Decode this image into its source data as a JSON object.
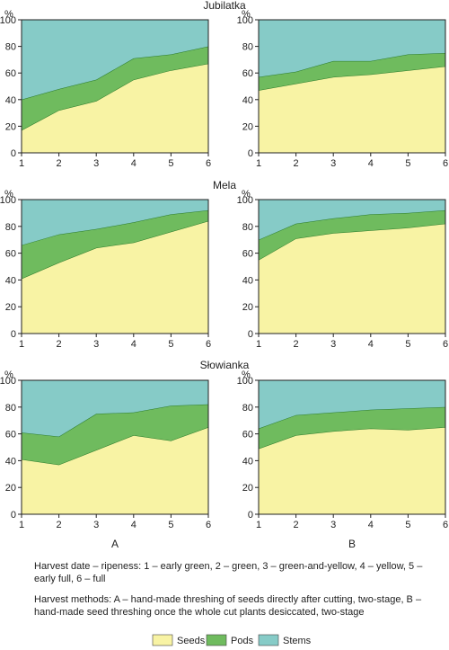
{
  "colors": {
    "seeds": "#f8f3a4",
    "pods": "#6fbb5e",
    "stems": "#86cbc7",
    "line": "#2a7a2a",
    "axis": "#222222"
  },
  "column_labels": [
    "A",
    "B"
  ],
  "captions": {
    "ripeness": "Harvest date – ripeness: 1 – early green, 2 – green, 3 – green-and-yellow, 4 – yellow, 5 – early full, 6 – full",
    "methods": "Harvest methods: A – hand-made threshing of seeds directly after cutting, two-stage, B – hand-made seed threshing once the whole cut plants desiccated, two-stage"
  },
  "legend": [
    {
      "label": "Seeds",
      "color": "#f8f3a4"
    },
    {
      "label": "Pods",
      "color": "#6fbb5e"
    },
    {
      "label": "Stems",
      "color": "#86cbc7"
    }
  ],
  "chart_data": [
    {
      "type": "area",
      "stacked": true,
      "group_title": "Jubilatka",
      "panel": "A",
      "ylabel": "%",
      "x": [
        1,
        2,
        3,
        4,
        5,
        6
      ],
      "ylim": [
        0,
        100
      ],
      "yticks": [
        0,
        20,
        40,
        60,
        80,
        100
      ],
      "series": [
        {
          "name": "Seeds",
          "values": [
            17,
            32,
            39,
            55,
            62,
            67
          ]
        },
        {
          "name": "Pods",
          "values": [
            23,
            16,
            16,
            16,
            12,
            13
          ]
        },
        {
          "name": "Stems",
          "values": [
            60,
            52,
            45,
            29,
            26,
            20
          ]
        }
      ]
    },
    {
      "type": "area",
      "stacked": true,
      "group_title": "",
      "panel": "B",
      "ylabel": "%",
      "x": [
        1,
        2,
        3,
        4,
        5,
        6
      ],
      "ylim": [
        0,
        100
      ],
      "yticks": [
        0,
        20,
        40,
        60,
        80,
        100
      ],
      "series": [
        {
          "name": "Seeds",
          "values": [
            47,
            52,
            57,
            59,
            62,
            65
          ]
        },
        {
          "name": "Pods",
          "values": [
            10,
            9,
            12,
            10,
            12,
            10
          ]
        },
        {
          "name": "Stems",
          "values": [
            43,
            39,
            31,
            31,
            26,
            25
          ]
        }
      ]
    },
    {
      "type": "area",
      "stacked": true,
      "group_title": "Mela",
      "panel": "A",
      "ylabel": "%",
      "x": [
        1,
        2,
        3,
        4,
        5,
        6
      ],
      "ylim": [
        0,
        100
      ],
      "yticks": [
        0,
        20,
        40,
        60,
        80,
        100
      ],
      "series": [
        {
          "name": "Seeds",
          "values": [
            41,
            53,
            64,
            68,
            76,
            84
          ]
        },
        {
          "name": "Pods",
          "values": [
            25,
            21,
            14,
            15,
            13,
            8
          ]
        },
        {
          "name": "Stems",
          "values": [
            34,
            26,
            22,
            17,
            11,
            8
          ]
        }
      ]
    },
    {
      "type": "area",
      "stacked": true,
      "group_title": "",
      "panel": "B",
      "ylabel": "%",
      "x": [
        1,
        2,
        3,
        4,
        5,
        6
      ],
      "ylim": [
        0,
        100
      ],
      "yticks": [
        0,
        20,
        40,
        60,
        80,
        100
      ],
      "series": [
        {
          "name": "Seeds",
          "values": [
            55,
            71,
            75,
            77,
            79,
            82
          ]
        },
        {
          "name": "Pods",
          "values": [
            15,
            11,
            11,
            12,
            11,
            10
          ]
        },
        {
          "name": "Stems",
          "values": [
            30,
            18,
            14,
            11,
            10,
            8
          ]
        }
      ]
    },
    {
      "type": "area",
      "stacked": true,
      "group_title": "Słowianka",
      "panel": "A",
      "ylabel": "%",
      "x": [
        1,
        2,
        3,
        4,
        5,
        6
      ],
      "ylim": [
        0,
        100
      ],
      "yticks": [
        0,
        20,
        40,
        60,
        80,
        100
      ],
      "series": [
        {
          "name": "Seeds",
          "values": [
            41,
            37,
            48,
            59,
            55,
            65
          ]
        },
        {
          "name": "Pods",
          "values": [
            20,
            21,
            27,
            17,
            26,
            17
          ]
        },
        {
          "name": "Stems",
          "values": [
            39,
            42,
            25,
            24,
            19,
            18
          ]
        }
      ]
    },
    {
      "type": "area",
      "stacked": true,
      "group_title": "",
      "panel": "B",
      "ylabel": "%",
      "x": [
        1,
        2,
        3,
        4,
        5,
        6
      ],
      "ylim": [
        0,
        100
      ],
      "yticks": [
        0,
        20,
        40,
        60,
        80,
        100
      ],
      "series": [
        {
          "name": "Seeds",
          "values": [
            49,
            59,
            62,
            64,
            63,
            65
          ]
        },
        {
          "name": "Pods",
          "values": [
            15,
            15,
            14,
            14,
            16,
            15
          ]
        },
        {
          "name": "Stems",
          "values": [
            36,
            26,
            24,
            22,
            21,
            20
          ]
        }
      ]
    }
  ]
}
